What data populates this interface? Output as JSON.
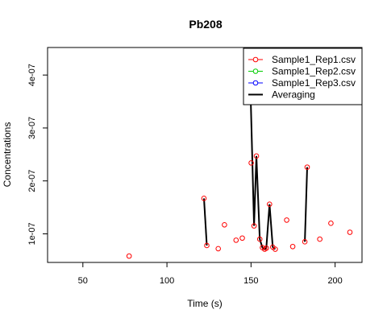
{
  "chart_data": {
    "type": "scatter",
    "title": "Pb208",
    "xlabel": "Time (s)",
    "ylabel": "Concentrations",
    "xlim": [
      29,
      216
    ],
    "ylim": [
      4.6e-08,
      4.52e-07
    ],
    "xticks": [
      50,
      100,
      150,
      200
    ],
    "xtick_labels": [
      "50",
      "100",
      "150",
      "200"
    ],
    "yticks": [
      1e-07,
      2e-07,
      3e-07,
      4e-07
    ],
    "ytick_labels": [
      "1e-07",
      "2e-07",
      "3e-07",
      "4e-07"
    ],
    "grid": false,
    "legend_position": "top-right",
    "series": [
      {
        "name": "Sample1_Rep1.csv",
        "color": "#ff0000",
        "marker": "open-circle",
        "x": [
          77.5,
          122,
          123.7,
          130.5,
          134.2,
          141.1,
          144.8,
          150.1,
          151.8,
          153.2,
          155.2,
          156.8,
          158.1,
          159.1,
          161,
          162.9,
          164.4,
          171.2,
          174.8,
          182,
          183.4,
          190.9,
          197.5,
          208.8
        ],
        "y": [
          5.8e-08,
          1.67e-07,
          7.8e-08,
          7.2e-08,
          1.17e-07,
          8.8e-08,
          9.2e-08,
          2.34e-07,
          1.15e-07,
          2.47e-07,
          9e-08,
          7.4e-08,
          7.1e-08,
          7.3e-08,
          1.56e-07,
          7.5e-08,
          7.1e-08,
          1.26e-07,
          7.6e-08,
          8.5e-08,
          2.26e-07,
          9e-08,
          1.2e-07,
          1.03e-07
        ]
      },
      {
        "name": "Sample1_Rep2.csv",
        "color": "#00cc00",
        "marker": "open-circle",
        "x": [],
        "y": []
      },
      {
        "name": "Sample1_Rep3.csv",
        "color": "#0000ff",
        "marker": "open-circle",
        "x": [],
        "y": []
      },
      {
        "name": "Averaging",
        "color": "#000000",
        "marker": "line",
        "segments": [
          {
            "x": [
              122,
              123.7
            ],
            "y": [
              1.67e-07,
              7.8e-08
            ]
          },
          {
            "x": [
              149,
              151.8,
              153.2,
              155.2,
              156.8,
              158.1,
              159.1,
              161,
              162.9,
              164.4
            ],
            "y": [
              4.52e-07,
              1.15e-07,
              2.47e-07,
              9e-08,
              7.4e-08,
              7.1e-08,
              7.3e-08,
              1.56e-07,
              7.5e-08,
              7.1e-08
            ]
          },
          {
            "x": [
              182,
              183.4
            ],
            "y": [
              8.5e-08,
              2.26e-07
            ]
          }
        ]
      }
    ]
  }
}
